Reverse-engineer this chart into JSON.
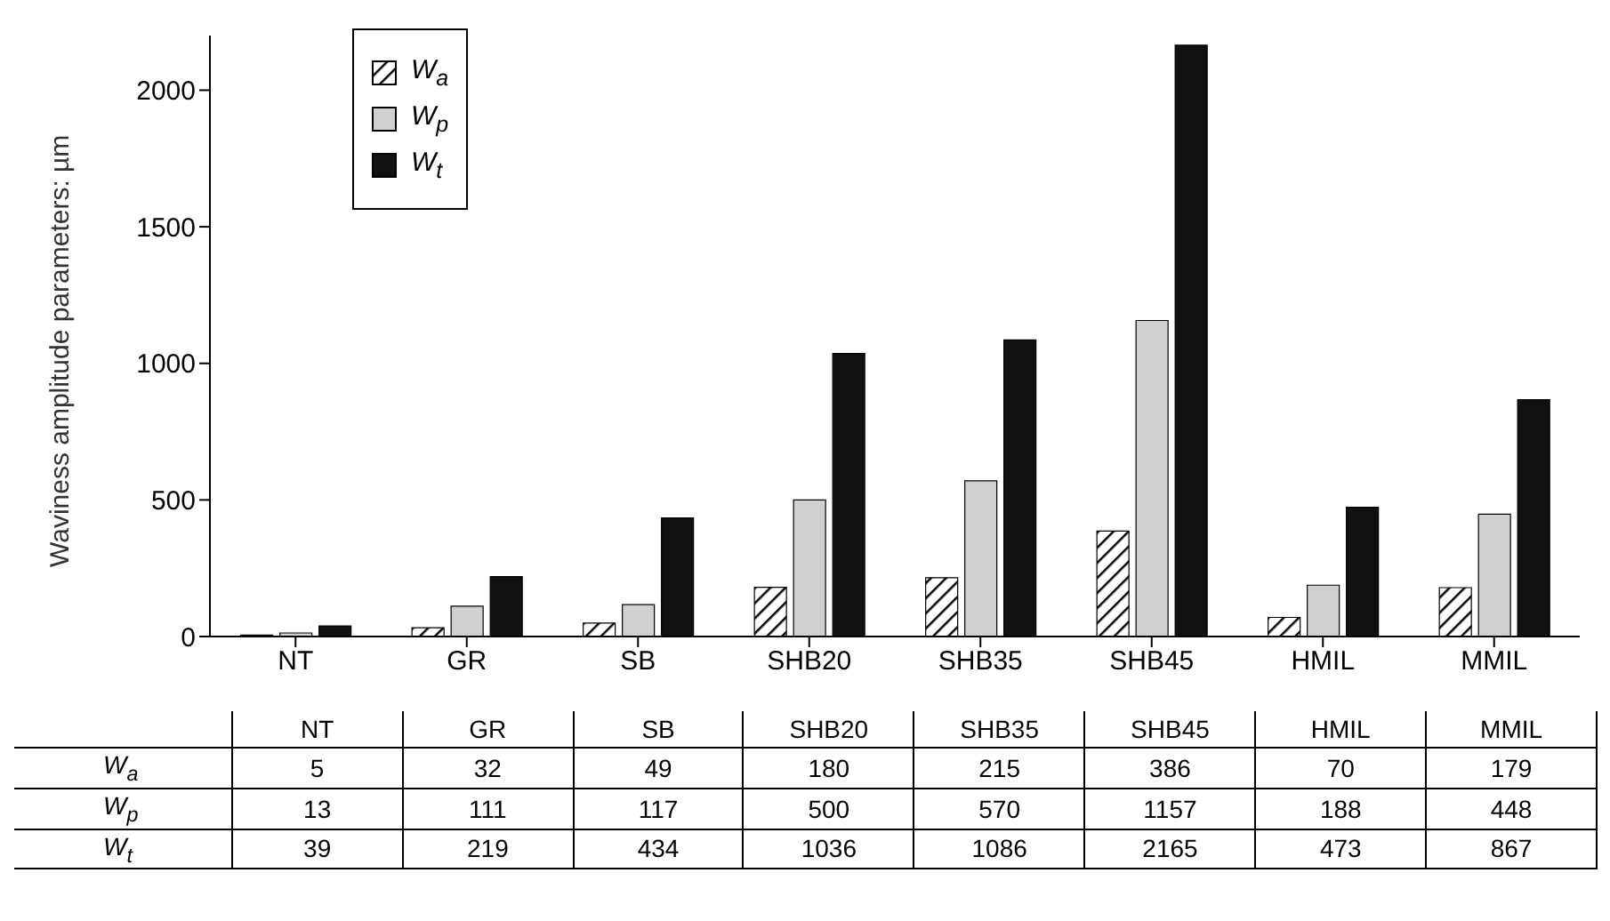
{
  "chart_data": {
    "type": "bar",
    "ylabel": "Waviness amplitude parameters: µm",
    "categories": [
      "NT",
      "GR",
      "SB",
      "SHB20",
      "SHB35",
      "SHB45",
      "HMIL",
      "MMIL"
    ],
    "series": [
      {
        "name": "W$_{a}$",
        "color": "#000000",
        "values": [
          5,
          32,
          49,
          180,
          215,
          386,
          70,
          179
        ]
      },
      {
        "name": "W$_{p}$",
        "color": "#d0d0d0",
        "values": [
          13,
          111,
          117,
          500,
          570,
          1157,
          188,
          448
        ]
      },
      {
        "name": "W$_{t}$",
        "color": "#111111",
        "values": [
          39,
          219,
          434,
          1036,
          1086,
          2165,
          473,
          867
        ]
      }
    ],
    "ylim": [
      0,
      2200
    ],
    "yticks": [
      0,
      500,
      1000,
      1500,
      2000
    ],
    "legend": "top left",
    "data_labels": true
  }
}
